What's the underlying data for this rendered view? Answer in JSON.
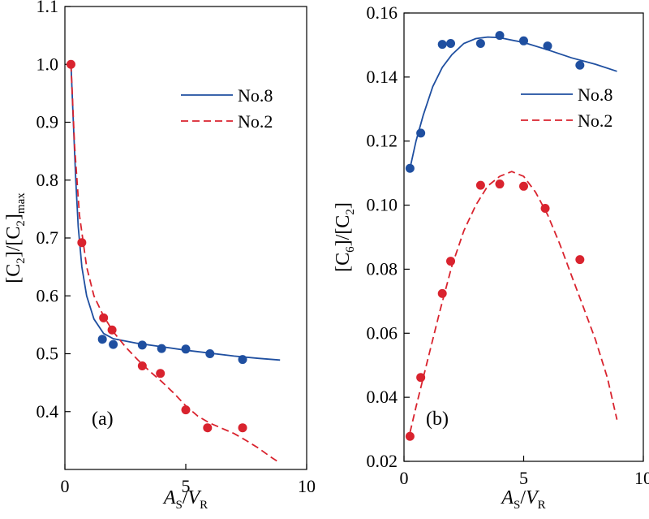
{
  "chart_data": [
    {
      "type": "scatter",
      "panel_label": "(a)",
      "xlabel": {
        "main": "A",
        "sub": "S",
        "sep": "/",
        "main2": "V",
        "sub2": "R"
      },
      "ylabel": {
        "p1": "[C",
        "s1": "2",
        "p2": "]/[C",
        "s2": "2",
        "p3": "]",
        "s3": "max"
      },
      "xlim": [
        0,
        10
      ],
      "ylim": [
        0.3,
        1.1
      ],
      "xticks": [
        0,
        5,
        10
      ],
      "xtick_labels": [
        "0",
        "5",
        "10"
      ],
      "yticks": [
        0.4,
        0.5,
        0.6,
        0.7,
        0.8,
        0.9,
        1.0,
        1.1
      ],
      "ytick_labels": [
        "0.4",
        "0.5",
        "0.6",
        "0.7",
        "0.8",
        "0.9",
        "1.0",
        "1.1"
      ],
      "legend_position": "top-right",
      "series": [
        {
          "name": "No.8",
          "color": "#1f4fa0",
          "line": "solid",
          "points": [
            [
              1.55,
              0.525
            ],
            [
              2.0,
              0.516
            ],
            [
              3.2,
              0.515
            ],
            [
              4.0,
              0.509
            ],
            [
              5.0,
              0.508
            ],
            [
              6.0,
              0.5
            ],
            [
              7.35,
              0.49
            ]
          ],
          "fit": [
            [
              0.25,
              1.0
            ],
            [
              0.35,
              0.9
            ],
            [
              0.45,
              0.8
            ],
            [
              0.55,
              0.72
            ],
            [
              0.7,
              0.65
            ],
            [
              0.9,
              0.6
            ],
            [
              1.2,
              0.56
            ],
            [
              1.6,
              0.535
            ],
            [
              2.0,
              0.526
            ],
            [
              3.0,
              0.518
            ],
            [
              4.0,
              0.512
            ],
            [
              5.0,
              0.506
            ],
            [
              6.0,
              0.501
            ],
            [
              7.0,
              0.496
            ],
            [
              8.0,
              0.492
            ],
            [
              8.9,
              0.489
            ]
          ]
        },
        {
          "name": "No.2",
          "color": "#d9232e",
          "line": "dashed",
          "points": [
            [
              0.25,
              1.0
            ],
            [
              0.7,
              0.692
            ],
            [
              1.6,
              0.562
            ],
            [
              1.95,
              0.541
            ],
            [
              3.2,
              0.479
            ],
            [
              3.95,
              0.466
            ],
            [
              5.0,
              0.403
            ],
            [
              5.9,
              0.372
            ],
            [
              7.35,
              0.372
            ]
          ],
          "fit": [
            [
              0.25,
              1.0
            ],
            [
              0.4,
              0.86
            ],
            [
              0.6,
              0.74
            ],
            [
              0.9,
              0.65
            ],
            [
              1.2,
              0.6
            ],
            [
              1.6,
              0.565
            ],
            [
              2.0,
              0.538
            ],
            [
              2.5,
              0.512
            ],
            [
              3.0,
              0.49
            ],
            [
              3.5,
              0.47
            ],
            [
              4.0,
              0.452
            ],
            [
              4.5,
              0.432
            ],
            [
              5.0,
              0.41
            ],
            [
              5.5,
              0.392
            ],
            [
              6.0,
              0.38
            ],
            [
              6.5,
              0.371
            ],
            [
              7.0,
              0.362
            ],
            [
              7.5,
              0.35
            ],
            [
              8.0,
              0.337
            ],
            [
              8.5,
              0.322
            ],
            [
              8.9,
              0.311
            ]
          ]
        }
      ]
    },
    {
      "type": "scatter",
      "panel_label": "(b)",
      "xlabel": {
        "main": "A",
        "sub": "S",
        "sep": "/",
        "main2": "V",
        "sub2": "R"
      },
      "ylabel": {
        "p1": "[C",
        "s1": "6",
        "p2": "]/[C",
        "s2": "2",
        "p3": "]",
        "s3": ""
      },
      "xlim": [
        0,
        10
      ],
      "ylim": [
        0.02,
        0.16
      ],
      "xticks": [
        0,
        5,
        10
      ],
      "xtick_labels": [
        "0",
        "5",
        "10"
      ],
      "yticks": [
        0.02,
        0.04,
        0.06,
        0.08,
        0.1,
        0.12,
        0.14,
        0.16
      ],
      "ytick_labels": [
        "0.02",
        "0.04",
        "0.06",
        "0.08",
        "0.10",
        "0.12",
        "0.14",
        "0.16"
      ],
      "legend_position": "top-right",
      "series": [
        {
          "name": "No.8",
          "color": "#1f4fa0",
          "line": "solid",
          "points": [
            [
              0.25,
              0.1115
            ],
            [
              0.7,
              0.1225
            ],
            [
              1.6,
              0.1502
            ],
            [
              1.95,
              0.1505
            ],
            [
              3.2,
              0.1505
            ],
            [
              4.0,
              0.153
            ],
            [
              5.0,
              0.1513
            ],
            [
              6.0,
              0.1497
            ],
            [
              7.35,
              0.1437
            ]
          ],
          "fit": [
            [
              0.25,
              0.1115
            ],
            [
              0.5,
              0.12
            ],
            [
              0.8,
              0.128
            ],
            [
              1.2,
              0.137
            ],
            [
              1.6,
              0.143
            ],
            [
              2.0,
              0.147
            ],
            [
              2.5,
              0.1505
            ],
            [
              3.0,
              0.152
            ],
            [
              3.5,
              0.1525
            ],
            [
              4.0,
              0.1523
            ],
            [
              5.0,
              0.1508
            ],
            [
              6.0,
              0.1485
            ],
            [
              7.0,
              0.146
            ],
            [
              8.0,
              0.144
            ],
            [
              8.9,
              0.1418
            ]
          ]
        },
        {
          "name": "No.2",
          "color": "#d9232e",
          "line": "dashed",
          "points": [
            [
              0.25,
              0.0278
            ],
            [
              0.7,
              0.0462
            ],
            [
              1.6,
              0.0724
            ],
            [
              1.95,
              0.0825
            ],
            [
              3.2,
              0.1062
            ],
            [
              4.0,
              0.1066
            ],
            [
              5.0,
              0.1059
            ],
            [
              5.9,
              0.099
            ],
            [
              7.35,
              0.083
            ]
          ],
          "fit": [
            [
              0.25,
              0.029
            ],
            [
              0.5,
              0.037
            ],
            [
              1.0,
              0.052
            ],
            [
              1.5,
              0.067
            ],
            [
              2.0,
              0.081
            ],
            [
              2.5,
              0.092
            ],
            [
              3.0,
              0.1
            ],
            [
              3.5,
              0.106
            ],
            [
              4.0,
              0.109
            ],
            [
              4.5,
              0.1105
            ],
            [
              5.0,
              0.109
            ],
            [
              5.5,
              0.104
            ],
            [
              6.0,
              0.097
            ],
            [
              6.5,
              0.088
            ],
            [
              7.0,
              0.078
            ],
            [
              7.5,
              0.068
            ],
            [
              8.0,
              0.058
            ],
            [
              8.5,
              0.046
            ],
            [
              8.9,
              0.033
            ]
          ]
        }
      ]
    }
  ]
}
